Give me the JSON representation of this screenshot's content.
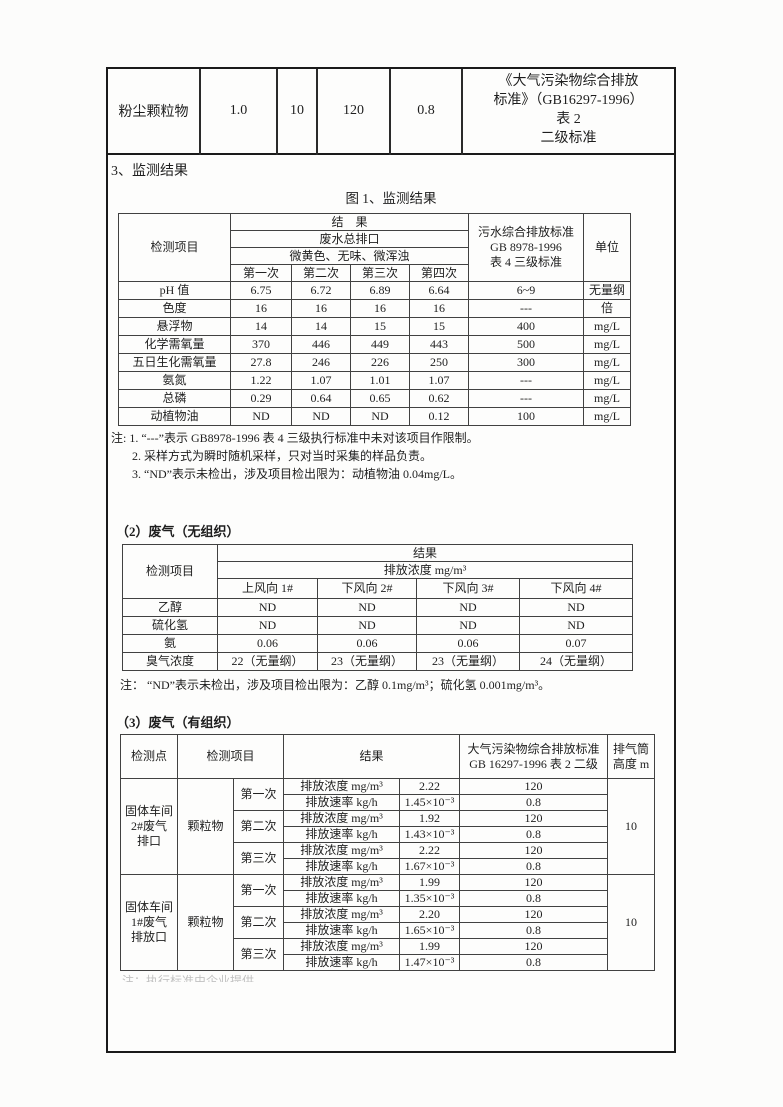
{
  "colors": {
    "ink": "#1e1e1e",
    "paper": "#fcfcfb",
    "border": "#1a1a1a"
  },
  "top_table": {
    "substance": "粉尘颗粒物",
    "v1": "1.0",
    "v2": "10",
    "v3": "120",
    "v4": "0.8",
    "standard": "《大气污染物综合排放\n标准》（GB16297-1996）\n表 2\n二级标准"
  },
  "section3_title": "3、监测结果",
  "figure1_caption": "图 1、监测结果",
  "wastewater": {
    "h_item": "检测项目",
    "h_result": "结　果",
    "h_outlet": "废水总排口",
    "h_appearance": "微黄色、无味、微浑浊",
    "h_run1": "第一次",
    "h_run2": "第二次",
    "h_run3": "第三次",
    "h_run4": "第四次",
    "h_standard": "污水综合排放标准\nGB 8978-1996\n表 4  三级标准",
    "h_unit": "单位",
    "rows": [
      [
        "pH 值",
        "6.75",
        "6.72",
        "6.89",
        "6.64",
        "6~9",
        "无量纲"
      ],
      [
        "色度",
        "16",
        "16",
        "16",
        "16",
        "---",
        "倍"
      ],
      [
        "悬浮物",
        "14",
        "14",
        "15",
        "15",
        "400",
        "mg/L"
      ],
      [
        "化学需氧量",
        "370",
        "446",
        "449",
        "443",
        "500",
        "mg/L"
      ],
      [
        "五日生化需氧量",
        "27.8",
        "246",
        "226",
        "250",
        "300",
        "mg/L"
      ],
      [
        "氨氮",
        "1.22",
        "1.07",
        "1.01",
        "1.07",
        "---",
        "mg/L"
      ],
      [
        "总磷",
        "0.29",
        "0.64",
        "0.65",
        "0.62",
        "---",
        "mg/L"
      ],
      [
        "动植物油",
        "ND",
        "ND",
        "ND",
        "0.12",
        "100",
        "mg/L"
      ]
    ],
    "note1": "注: 1. “---”表示 GB8978-1996 表 4  三级执行标准中未对该项目作限制。",
    "note2": "2.  采样方式为瞬时随机采样，只对当时采集的样品负责。",
    "note3": "3.  “ND”表示未检出，涉及项目检出限为：动植物油 0.04mg/L。"
  },
  "gas2": {
    "heading": "（2）废气（无组织）",
    "h_item": "检测项目",
    "h_result": "结果",
    "h_conc": "排放浓度 mg/m³",
    "h_c1": "上风向 1#",
    "h_c2": "下风向 2#",
    "h_c3": "下风向 3#",
    "h_c4": "下风向 4#",
    "rows": [
      [
        "乙醇",
        "ND",
        "ND",
        "ND",
        "ND"
      ],
      [
        "硫化氢",
        "ND",
        "ND",
        "ND",
        "ND"
      ],
      [
        "氨",
        "0.06",
        "0.06",
        "0.06",
        "0.07"
      ],
      [
        "臭气浓度",
        "22（无量纲）",
        "23（无量纲）",
        "23（无量纲）",
        "24（无量纲）"
      ]
    ],
    "note": "注：  “ND”表示未检出，涉及项目检出限为：乙醇 0.1mg/m³；硫化氢 0.001mg/m³。"
  },
  "gas3": {
    "heading": "（3）废气（有组织）",
    "h_point": "检测点",
    "h_item": "检测项目",
    "h_result": "结果",
    "h_standard": "大气污染物综合排放标准\nGB 16297-1996 表 2 二级",
    "h_stack": "排气筒\n高度 m",
    "labels": {
      "conc": "排放浓度 mg/m³",
      "rate": "排放速率 kg/h"
    },
    "groups": [
      {
        "point": "固体车间\n2#废气\n排口",
        "item": "颗粒物",
        "stack": "10",
        "runs": [
          {
            "label": "第一次",
            "conc": "2.22",
            "conc_std": "120",
            "rate": "1.45×10⁻³",
            "rate_std": "0.8"
          },
          {
            "label": "第二次",
            "conc": "1.92",
            "conc_std": "120",
            "rate": "1.43×10⁻³",
            "rate_std": "0.8"
          },
          {
            "label": "第三次",
            "conc": "2.22",
            "conc_std": "120",
            "rate": "1.67×10⁻³",
            "rate_std": "0.8"
          }
        ]
      },
      {
        "point": "固体车间\n1#废气\n排放口",
        "item": "颗粒物",
        "stack": "10",
        "runs": [
          {
            "label": "第一次",
            "conc": "1.99",
            "conc_std": "120",
            "rate": "1.35×10⁻³",
            "rate_std": "0.8"
          },
          {
            "label": "第二次",
            "conc": "2.20",
            "conc_std": "120",
            "rate": "1.65×10⁻³",
            "rate_std": "0.8"
          },
          {
            "label": "第三次",
            "conc": "1.99",
            "conc_std": "120",
            "rate": "1.47×10⁻³",
            "rate_std": "0.8"
          }
        ]
      }
    ],
    "note_faint": "注：执行标准由企业提供"
  }
}
